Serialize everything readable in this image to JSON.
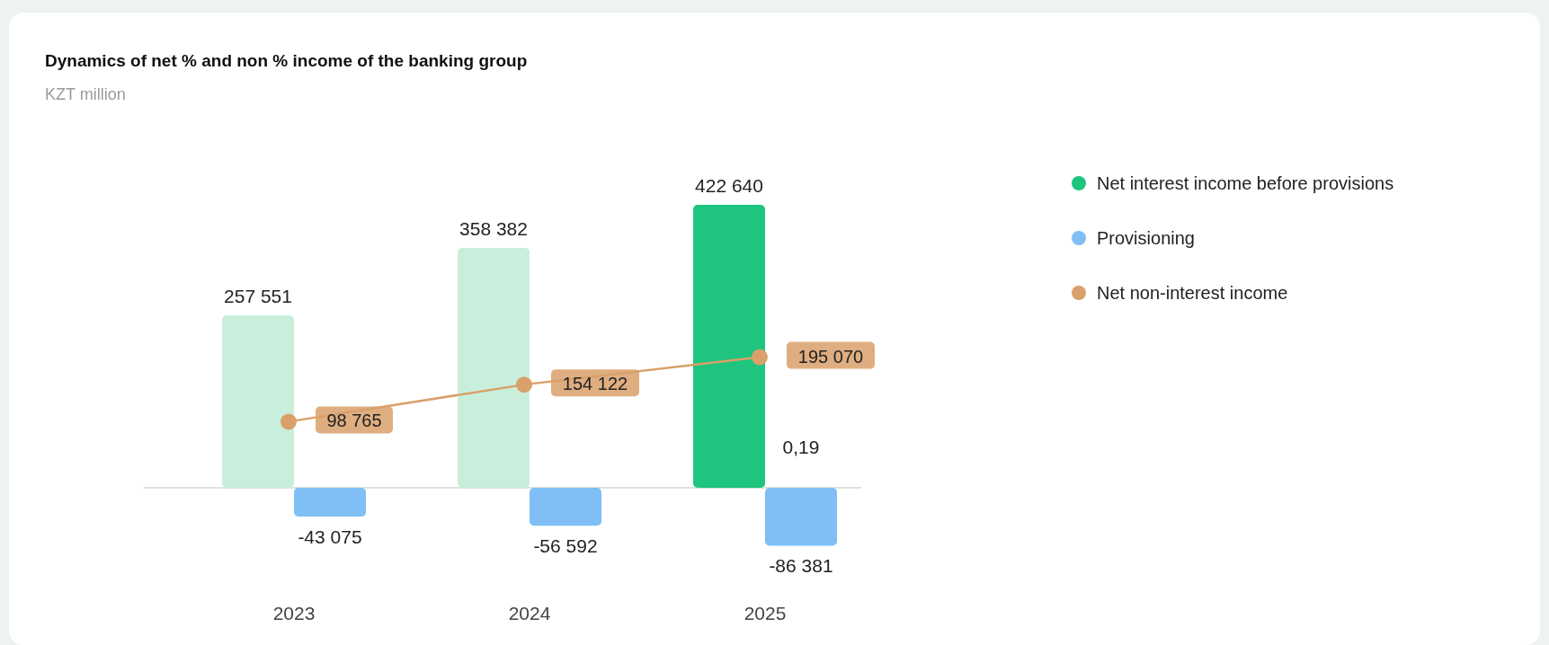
{
  "chart_data": {
    "type": "bar",
    "title": "Dynamics of net % and non % income of the banking group",
    "subtitle": "KZT million",
    "categories": [
      "2023",
      "2024",
      "2025"
    ],
    "series": [
      {
        "name": "Net interest income before provisions",
        "color": "#1fc57f",
        "colors": [
          "#c9efdc",
          "#c9efdc",
          "#1fc57f"
        ],
        "values": [
          257551,
          358382,
          422640
        ]
      },
      {
        "name": "Provisioning",
        "color": "#7fbff5",
        "values": [
          -43075,
          -56592,
          -86381
        ]
      },
      {
        "name": "Net non-interest income",
        "type": "line",
        "color": "#d9a06a",
        "marker": "circle",
        "values": [
          98765,
          154122,
          195070
        ]
      }
    ],
    "annotations": [
      "0,19"
    ],
    "data_labels": true,
    "legend": "right"
  }
}
